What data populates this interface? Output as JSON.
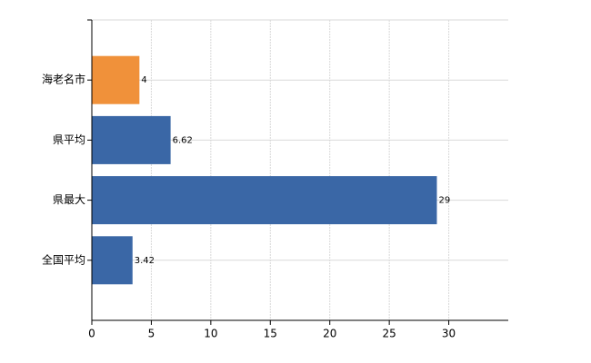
{
  "chart_data": {
    "type": "bar",
    "orientation": "horizontal",
    "categories": [
      "海老名市",
      "県平均",
      "県最大",
      "全国平均"
    ],
    "values": [
      4,
      6.62,
      29,
      3.42
    ],
    "colors": [
      "#f0913a",
      "#3a67a6",
      "#3a67a6",
      "#3a67a6"
    ],
    "xlim": [
      0,
      35
    ],
    "xticks": [
      0,
      5,
      10,
      15,
      20,
      25,
      30
    ],
    "grid": true
  }
}
